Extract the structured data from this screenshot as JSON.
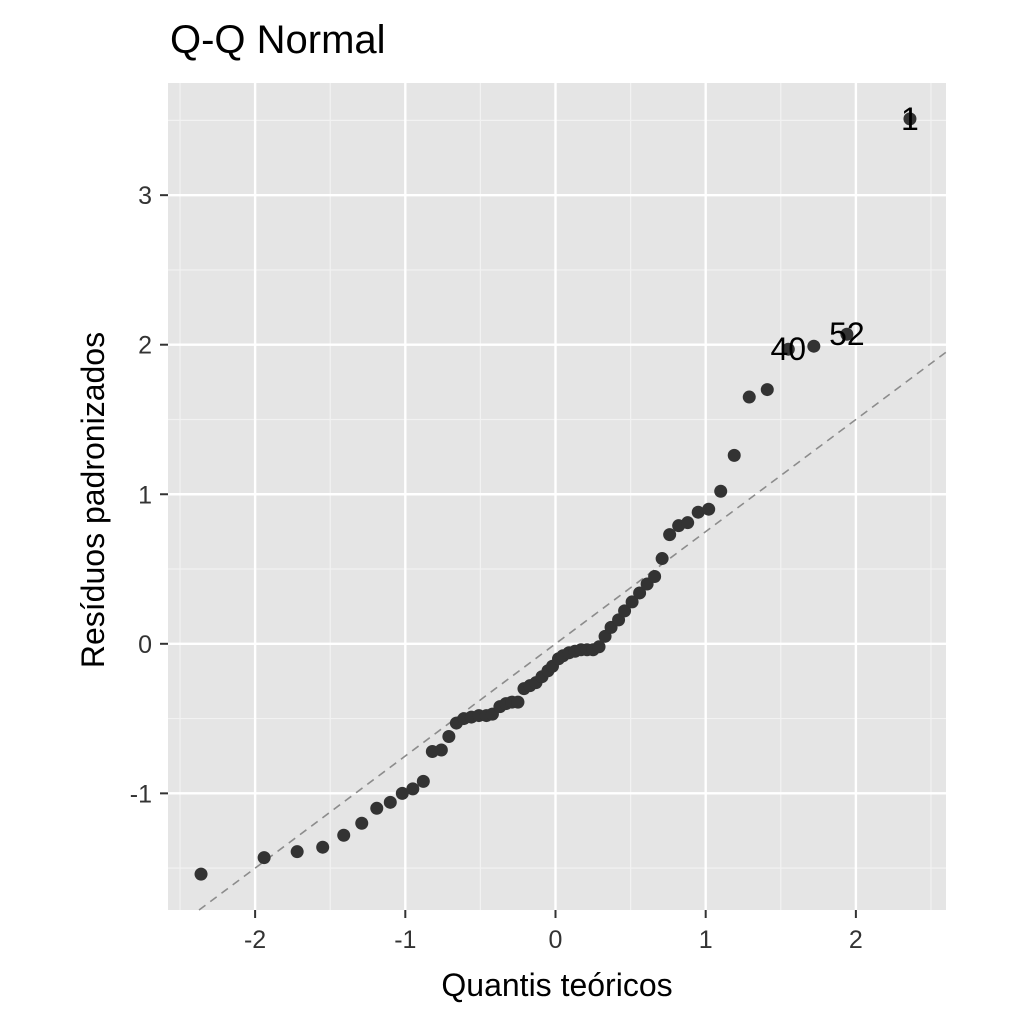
{
  "chart_data": {
    "type": "scatter",
    "title": "Q-Q Normal",
    "xlabel": "Quantis teóricos",
    "ylabel": "Resíduos padronizados",
    "xlim": [
      -2.58,
      2.6
    ],
    "ylim": [
      -1.78,
      3.75
    ],
    "xticks": [
      -2,
      -1,
      0,
      1,
      2
    ],
    "yticks": [
      -1,
      0,
      1,
      2,
      3
    ],
    "x_tick_labels": [
      "-2",
      "-1",
      "0",
      "1",
      "2"
    ],
    "y_tick_labels": [
      "-1",
      "0",
      "1",
      "2",
      "3"
    ],
    "grid": true,
    "reference_line": {
      "intercept": 0.0,
      "slope": 0.75,
      "style": "dashed"
    },
    "points": [
      {
        "x": -2.36,
        "y": -1.54
      },
      {
        "x": -1.94,
        "y": -1.43
      },
      {
        "x": -1.72,
        "y": -1.39
      },
      {
        "x": -1.55,
        "y": -1.36
      },
      {
        "x": -1.41,
        "y": -1.28
      },
      {
        "x": -1.29,
        "y": -1.2
      },
      {
        "x": -1.19,
        "y": -1.1
      },
      {
        "x": -1.1,
        "y": -1.06
      },
      {
        "x": -1.02,
        "y": -1.0
      },
      {
        "x": -0.95,
        "y": -0.97
      },
      {
        "x": -0.88,
        "y": -0.92
      },
      {
        "x": -0.82,
        "y": -0.72
      },
      {
        "x": -0.76,
        "y": -0.71
      },
      {
        "x": -0.71,
        "y": -0.62
      },
      {
        "x": -0.66,
        "y": -0.53
      },
      {
        "x": -0.61,
        "y": -0.5
      },
      {
        "x": -0.56,
        "y": -0.49
      },
      {
        "x": -0.51,
        "y": -0.48
      },
      {
        "x": -0.46,
        "y": -0.48
      },
      {
        "x": -0.42,
        "y": -0.47
      },
      {
        "x": -0.37,
        "y": -0.42
      },
      {
        "x": -0.33,
        "y": -0.4
      },
      {
        "x": -0.29,
        "y": -0.39
      },
      {
        "x": -0.25,
        "y": -0.39
      },
      {
        "x": -0.21,
        "y": -0.3
      },
      {
        "x": -0.17,
        "y": -0.28
      },
      {
        "x": -0.13,
        "y": -0.26
      },
      {
        "x": -0.09,
        "y": -0.22
      },
      {
        "x": -0.05,
        "y": -0.18
      },
      {
        "x": -0.02,
        "y": -0.15
      },
      {
        "x": 0.02,
        "y": -0.1
      },
      {
        "x": 0.05,
        "y": -0.08
      },
      {
        "x": 0.09,
        "y": -0.06
      },
      {
        "x": 0.13,
        "y": -0.05
      },
      {
        "x": 0.17,
        "y": -0.04
      },
      {
        "x": 0.21,
        "y": -0.04
      },
      {
        "x": 0.25,
        "y": -0.04
      },
      {
        "x": 0.29,
        "y": -0.02
      },
      {
        "x": 0.33,
        "y": 0.05
      },
      {
        "x": 0.37,
        "y": 0.11
      },
      {
        "x": 0.42,
        "y": 0.16
      },
      {
        "x": 0.46,
        "y": 0.22
      },
      {
        "x": 0.51,
        "y": 0.28
      },
      {
        "x": 0.56,
        "y": 0.34
      },
      {
        "x": 0.61,
        "y": 0.4
      },
      {
        "x": 0.66,
        "y": 0.45
      },
      {
        "x": 0.71,
        "y": 0.57
      },
      {
        "x": 0.76,
        "y": 0.73
      },
      {
        "x": 0.82,
        "y": 0.79
      },
      {
        "x": 0.88,
        "y": 0.81
      },
      {
        "x": 0.95,
        "y": 0.88
      },
      {
        "x": 1.02,
        "y": 0.9
      },
      {
        "x": 1.1,
        "y": 1.02
      },
      {
        "x": 1.19,
        "y": 1.26
      },
      {
        "x": 1.29,
        "y": 1.65
      },
      {
        "x": 1.41,
        "y": 1.7
      },
      {
        "x": 1.55,
        "y": 1.97,
        "label": "40"
      },
      {
        "x": 1.72,
        "y": 1.99
      },
      {
        "x": 1.94,
        "y": 2.07,
        "label": "52"
      },
      {
        "x": 2.36,
        "y": 3.51,
        "label": "1"
      }
    ],
    "colors": {
      "panel": "#e5e5e5",
      "grid_major": "#ffffff",
      "grid_minor": "#f2f2f2",
      "point": "#333333",
      "reference_line": "#8c8c8c",
      "tick": "#333333"
    }
  }
}
